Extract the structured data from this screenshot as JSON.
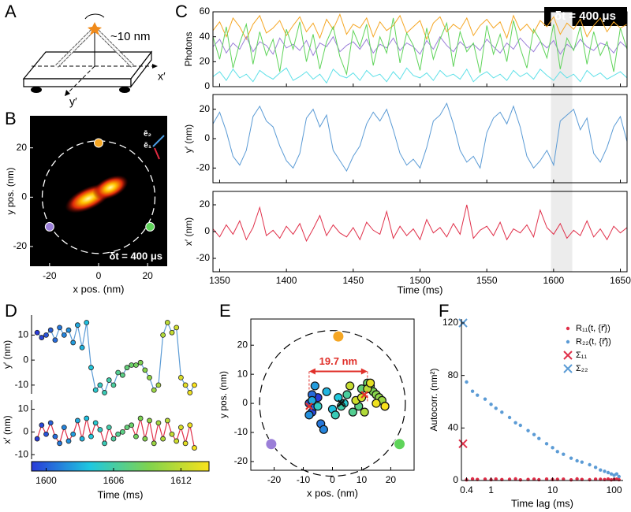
{
  "diagram": {
    "panel_label": "A",
    "size_label": "~10 nm",
    "x_label": "x′",
    "y_label": "y′"
  },
  "chart_data": [
    {
      "type": "heatmap",
      "panel_label": "B",
      "xlabel": "x pos. (nm)",
      "ylabel": "y pos. (nm)",
      "xlim": [
        -28,
        28
      ],
      "ylim": [
        -28,
        33
      ],
      "xticks": [
        -20,
        0,
        20
      ],
      "yticks": [
        -20,
        0,
        20
      ],
      "ring_radius": 23,
      "annotation": "δt = 400 μs",
      "vector_labels": [
        "ē₂",
        "ē₁"
      ],
      "sites": {
        "x": [
          0,
          -20,
          21
        ],
        "y": [
          22,
          -12,
          -12
        ],
        "colors": [
          "#f5a623",
          "#9b7fd8",
          "#5fd45a"
        ]
      }
    },
    {
      "type": "line",
      "panel_label": "C",
      "xlabel": "Time (ms)",
      "xlim": [
        1345,
        1655
      ],
      "xticks": [
        1350,
        1400,
        1450,
        1500,
        1550,
        1600,
        1650
      ],
      "annotation": "δt = 400 μs",
      "highlight": [
        1598,
        1614
      ],
      "x": [
        1345,
        1350,
        1355,
        1360,
        1365,
        1370,
        1375,
        1380,
        1385,
        1390,
        1395,
        1400,
        1405,
        1410,
        1415,
        1420,
        1425,
        1430,
        1435,
        1440,
        1445,
        1450,
        1455,
        1460,
        1465,
        1470,
        1475,
        1480,
        1485,
        1490,
        1495,
        1500,
        1505,
        1510,
        1515,
        1520,
        1525,
        1530,
        1535,
        1540,
        1545,
        1550,
        1555,
        1560,
        1565,
        1570,
        1575,
        1580,
        1585,
        1590,
        1595,
        1600,
        1605,
        1610,
        1615,
        1620,
        1625,
        1630,
        1635,
        1640,
        1645,
        1650,
        1655
      ],
      "rows": [
        {
          "ylabel": "Photons",
          "ylim": [
            0,
            60
          ],
          "yticks": [
            0,
            20,
            40,
            60
          ],
          "series": [
            {
              "color": "#f5a623",
              "values": [
                45,
                52,
                40,
                55,
                48,
                38,
                50,
                57,
                43,
                47,
                53,
                41,
                49,
                56,
                44,
                51,
                39,
                54,
                46,
                58,
                42,
                50,
                47,
                55,
                40,
                52,
                45,
                49,
                57,
                43,
                48,
                53,
                38,
                51,
                56,
                44,
                50,
                46,
                55,
                41,
                49,
                54,
                47,
                52,
                39,
                57,
                45,
                50,
                43,
                53,
                48,
                56,
                42,
                51,
                46,
                54,
                40,
                49,
                55,
                44,
                52,
                47,
                50
              ]
            },
            {
              "color": "#9b7fd8",
              "values": [
                32,
                38,
                27,
                35,
                30,
                40,
                28,
                36,
                33,
                26,
                39,
                31,
                34,
                29,
                37,
                25,
                35,
                32,
                40,
                28,
                33,
                36,
                30,
                38,
                27,
                34,
                31,
                39,
                29,
                35,
                32,
                26,
                37,
                30,
                40,
                33,
                28,
                36,
                31,
                34,
                29,
                38,
                32,
                27,
                35,
                30,
                39,
                33,
                28,
                36,
                31,
                37,
                26,
                34,
                30,
                38,
                32,
                29,
                35,
                33,
                27,
                36,
                31
              ]
            },
            {
              "color": "#5fd45a",
              "values": [
                40,
                22,
                48,
                15,
                35,
                50,
                18,
                44,
                25,
                38,
                12,
                46,
                30,
                52,
                20,
                42,
                14,
                36,
                48,
                24,
                10,
                45,
                32,
                50,
                17,
                40,
                27,
                55,
                19,
                43,
                33,
                13,
                47,
                22,
                38,
                51,
                16,
                44,
                28,
                35,
                11,
                49,
                26,
                42,
                20,
                53,
                31,
                15,
                46,
                37,
                23,
                50,
                14,
                39,
                29,
                48,
                18,
                44,
                25,
                36,
                12,
                47,
                30
              ]
            },
            {
              "color": "#5ee0e8",
              "values": [
                8,
                12,
                5,
                14,
                7,
                10,
                4,
                13,
                9,
                6,
                11,
                15,
                5,
                8,
                12,
                6,
                10,
                3,
                14,
                9,
                7,
                11,
                5,
                13,
                8,
                10,
                4,
                12,
                6,
                15,
                9,
                7,
                11,
                5,
                13,
                8,
                10,
                6,
                14,
                4,
                9,
                12,
                7,
                10,
                5,
                13,
                8,
                11,
                6,
                14,
                9,
                5,
                12,
                7,
                10,
                4,
                13,
                8,
                11,
                6,
                9,
                12,
                7
              ]
            }
          ]
        },
        {
          "ylabel": "y′ (nm)",
          "ylim": [
            -30,
            30
          ],
          "yticks": [
            -20,
            0,
            20
          ],
          "series": [
            {
              "color": "#5b9bd5",
              "values": [
                10,
                18,
                5,
                -12,
                -18,
                -8,
                15,
                22,
                12,
                8,
                -5,
                -15,
                -20,
                -10,
                14,
                20,
                8,
                16,
                -8,
                -15,
                -22,
                -12,
                -5,
                10,
                18,
                12,
                20,
                6,
                -10,
                -18,
                -14,
                -20,
                -6,
                12,
                16,
                24,
                10,
                -8,
                -16,
                -12,
                -20,
                4,
                14,
                18,
                10,
                22,
                8,
                -12,
                -20,
                -15,
                -8,
                -18,
                12,
                16,
                20,
                6,
                14,
                -10,
                -16,
                -6,
                8,
                15,
                -2
              ]
            }
          ]
        },
        {
          "ylabel": "x′ (nm)",
          "ylim": [
            -30,
            30
          ],
          "yticks": [
            -20,
            0,
            20
          ],
          "series": [
            {
              "color": "#e0304a",
              "values": [
                2,
                -4,
                5,
                -2,
                8,
                -6,
                3,
                18,
                -3,
                1,
                -5,
                4,
                -2,
                6,
                -7,
                2,
                12,
                -3,
                5,
                -1,
                -4,
                3,
                -6,
                7,
                1,
                -2,
                15,
                -5,
                4,
                -3,
                2,
                -6,
                9,
                -1,
                3,
                -4,
                6,
                -2,
                20,
                -5,
                1,
                4,
                -3,
                7,
                -6,
                2,
                -1,
                5,
                -4,
                16,
                3,
                -2,
                6,
                -5,
                1,
                -3,
                8,
                -4,
                2,
                -6,
                4,
                -1,
                3
              ]
            }
          ]
        }
      ]
    },
    {
      "type": "line",
      "panel_label": "D",
      "markers": true,
      "colorbar": true,
      "xlabel": "Time (ms)",
      "xlim": [
        1598.7,
        1614.5
      ],
      "xticks": [
        1600,
        1606,
        1612
      ],
      "x": [
        1599.2,
        1599.6,
        1600,
        1600.4,
        1600.8,
        1601.2,
        1601.6,
        1602,
        1602.4,
        1602.8,
        1603.2,
        1603.6,
        1604,
        1604.4,
        1604.8,
        1605.2,
        1605.6,
        1606,
        1606.4,
        1606.8,
        1607.2,
        1607.6,
        1608,
        1608.4,
        1608.8,
        1609.2,
        1609.6,
        1610,
        1610.4,
        1610.8,
        1611.2,
        1611.6,
        1612,
        1612.4,
        1612.8,
        1613.2
      ],
      "rows": [
        {
          "ylabel": "y′ (nm)",
          "ylim": [
            -13.5,
            18
          ],
          "yticks": [
            -10,
            0,
            10
          ],
          "series": [
            {
              "color": "#5b9bd5",
              "values": [
                11,
                9,
                10,
                12,
                8,
                13,
                10,
                12,
                7,
                14,
                5,
                15,
                -3,
                -12,
                -10,
                -13,
                -8,
                -10,
                -5,
                -6,
                -3,
                -2,
                -2,
                -1,
                -4,
                -7,
                -12,
                -10,
                10,
                15,
                11,
                13,
                -7,
                -10,
                -13,
                -10
              ]
            }
          ]
        },
        {
          "ylabel": "x′ (nm)",
          "ylim": [
            -12,
            14
          ],
          "yticks": [
            -10,
            0,
            10
          ],
          "series": [
            {
              "color": "#e0304a",
              "values": [
                -3,
                3,
                -1,
                4,
                -2,
                -5,
                2,
                -4,
                -1,
                5,
                -3,
                6,
                -2,
                4,
                1,
                -5,
                2,
                -3,
                -1,
                0,
                2,
                3,
                -2,
                6,
                -3,
                5,
                -5,
                4,
                -3,
                5,
                -1,
                -4,
                2,
                -5,
                3,
                -7
              ]
            }
          ]
        }
      ]
    },
    {
      "type": "scatter",
      "panel_label": "E",
      "xlabel": "x pos. (nm)",
      "ylabel": "y pos. (nm)",
      "xlim": [
        -28,
        28
      ],
      "ylim": [
        -23,
        29
      ],
      "xticks": [
        -20,
        -10,
        0,
        10,
        20
      ],
      "yticks": [
        -20,
        -10,
        0,
        10,
        20
      ],
      "ring_radius": 25,
      "sites": {
        "x": [
          2,
          -21,
          23
        ],
        "y": [
          23,
          -14,
          -14
        ],
        "colors": [
          "#f5a623",
          "#9b7fd8",
          "#5fd45a"
        ]
      },
      "x": [
        -5,
        -7,
        -8,
        -6,
        -7,
        -4,
        -3,
        -8,
        -6,
        -7,
        -2,
        0,
        2,
        4,
        -5,
        1,
        3,
        5,
        7,
        9,
        10,
        12,
        13,
        14,
        15,
        16,
        17,
        18,
        11,
        12,
        6,
        8,
        10,
        13,
        15,
        18
      ],
      "y": [
        2,
        -3,
        0,
        -1,
        3,
        -7,
        -9,
        -4,
        6,
        1,
        4,
        -2,
        2,
        0,
        -1,
        -4,
        -1,
        3,
        -3,
        -1,
        5,
        7,
        6,
        4,
        3,
        2,
        1,
        -1,
        -3,
        5,
        6,
        1,
        2,
        7,
        0,
        -1
      ],
      "crosses": {
        "x": [
          -8,
          3,
          11
        ],
        "y": [
          -1,
          0,
          3
        ],
        "colors": [
          "#e0302a",
          "#111111",
          "#e0302a"
        ]
      },
      "arrow": {
        "x": [
          -8,
          12
        ],
        "y": 11,
        "label": "19.7 nm",
        "color": "#e0302a"
      }
    },
    {
      "type": "scatter",
      "panel_label": "F",
      "log_x": true,
      "xlabel": "Time lag (ms)",
      "ylabel": "Autocorr. (nm²)",
      "xlim": [
        0.33,
        140
      ],
      "ylim": [
        0,
        123
      ],
      "xticks": [
        0.4,
        1,
        10,
        100
      ],
      "yticks": [
        0,
        40,
        80,
        120
      ],
      "legend": "upper right",
      "series": [
        {
          "name": "R₁₁(t, {r⃗})",
          "color": "#e0304a",
          "marker": "dot",
          "x": [
            0.4,
            0.5,
            0.6,
            0.8,
            1,
            1.2,
            1.5,
            2,
            2.5,
            3,
            4,
            5,
            6,
            8,
            10,
            12,
            15,
            20,
            25,
            30,
            40,
            50,
            60,
            70,
            80,
            90,
            100,
            110,
            120
          ],
          "values": [
            0.5,
            1.2,
            0.8,
            1,
            0.6,
            1.1,
            0.7,
            0.9,
            1.2,
            0.5,
            0.8,
            1,
            0.6,
            1.1,
            0.7,
            0.9,
            1,
            0.5,
            1.2,
            0.8,
            0.6,
            1,
            0.9,
            0.7,
            1.1,
            0.5,
            0.8,
            1,
            0.6
          ]
        },
        {
          "name": "R₂₂(t, {r⃗})",
          "color": "#5b9bd5",
          "marker": "dot",
          "x": [
            0.4,
            0.5,
            0.6,
            0.8,
            1,
            1.2,
            1.5,
            2,
            2.5,
            3,
            4,
            5,
            6,
            8,
            10,
            12,
            15,
            20,
            25,
            30,
            40,
            50,
            60,
            70,
            80,
            90,
            100,
            110,
            120
          ],
          "values": [
            75,
            68,
            65,
            62,
            58,
            55,
            52,
            48,
            44,
            42,
            38,
            35,
            32,
            28,
            25,
            22,
            20,
            17,
            15,
            14,
            12,
            10,
            8,
            7,
            6,
            5,
            4,
            5,
            3
          ]
        },
        {
          "name": "Σ₁₁",
          "color": "#e0304a",
          "marker": "cross",
          "x": [
            0.35
          ],
          "values": [
            28
          ]
        },
        {
          "name": "Σ₂₂",
          "color": "#5b9bd5",
          "marker": "cross",
          "x": [
            0.35
          ],
          "values": [
            120
          ]
        }
      ]
    }
  ]
}
